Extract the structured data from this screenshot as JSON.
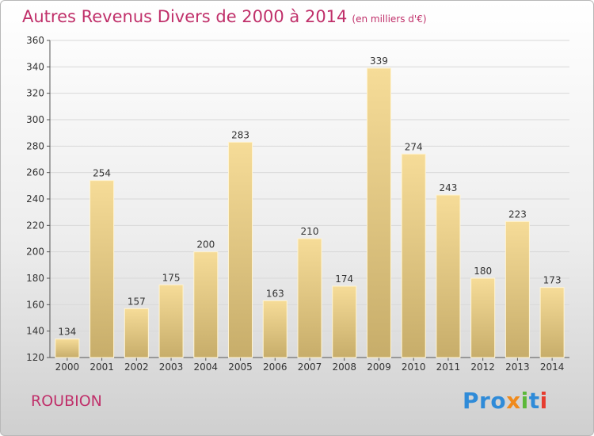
{
  "title": "Autres Revenus Divers de 2000 à 2014",
  "unit": "(en milliers d'€)",
  "town": "ROUBION",
  "brand": {
    "parts": [
      "Pro",
      "x",
      "i",
      "t",
      "i"
    ],
    "colors": [
      "#2f8bd8",
      "#f08a1c",
      "#5cb83a",
      "#2f8bd8",
      "#e63c2f"
    ]
  },
  "chart_data": {
    "type": "bar",
    "title": "Autres Revenus Divers de 2000 à 2014",
    "subtitle": "(en milliers d'€)",
    "categories": [
      "2000",
      "2001",
      "2002",
      "2003",
      "2004",
      "2005",
      "2006",
      "2007",
      "2008",
      "2009",
      "2010",
      "2011",
      "2012",
      "2013",
      "2014"
    ],
    "values": [
      134,
      254,
      157,
      175,
      200,
      283,
      163,
      210,
      174,
      339,
      274,
      243,
      180,
      223,
      173
    ],
    "ylim": [
      120,
      360
    ],
    "yticks": [
      120,
      140,
      160,
      180,
      200,
      220,
      240,
      260,
      280,
      300,
      320,
      340,
      360
    ],
    "grid": true,
    "bar_color": "#ecd28c"
  }
}
